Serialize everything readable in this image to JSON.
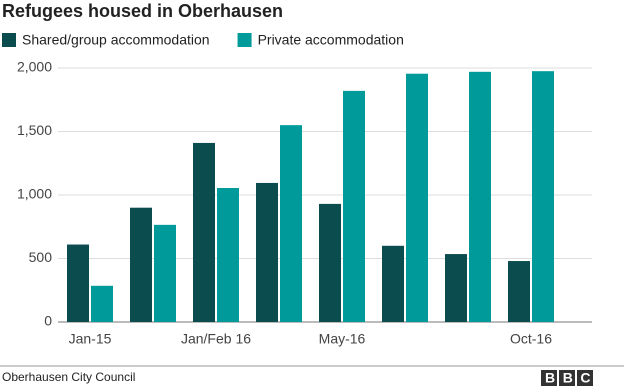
{
  "chart_data": {
    "type": "bar",
    "title": "Refugees housed in Oberhausen",
    "categories": [
      "Jan-15",
      null,
      "Jan/Feb 16",
      null,
      "May-16",
      null,
      null,
      "Oct-16"
    ],
    "series": [
      {
        "name": "Shared/group accommodation",
        "color": "#0b4d4e",
        "values": [
          610,
          900,
          1410,
          1095,
          930,
          600,
          535,
          480
        ]
      },
      {
        "name": "Private accommodation",
        "color": "#009a9a",
        "values": [
          285,
          765,
          1055,
          1550,
          1820,
          1955,
          1970,
          1975
        ]
      }
    ],
    "ylim": [
      0,
      2000
    ],
    "yticks": [
      0,
      500,
      {
        "value": 1000,
        "label": "1,000"
      },
      {
        "value": 1500,
        "label": "1,500"
      },
      {
        "value": 2000,
        "label": "2,000"
      }
    ],
    "grid": true,
    "source": "Oberhausen City Council",
    "logo": "BBC"
  }
}
